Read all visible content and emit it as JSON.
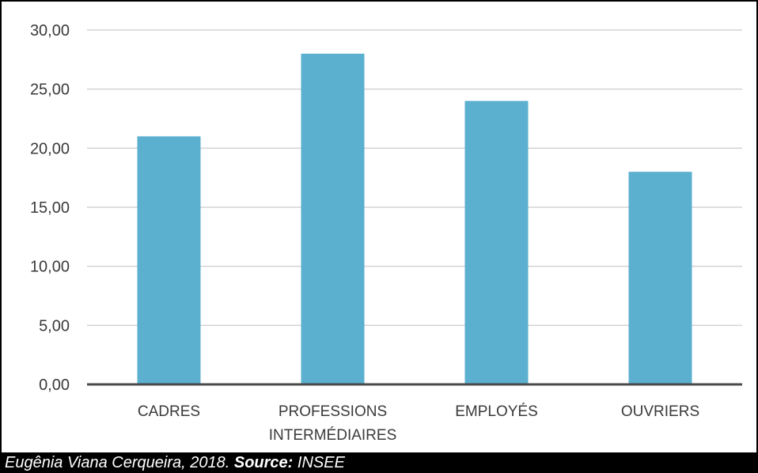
{
  "chart_data": {
    "type": "bar",
    "categories": [
      "CADRES",
      "PROFESSIONS INTERMÉDIAIRES",
      "EMPLOYÉS",
      "OUVRIERS"
    ],
    "category_lines": [
      [
        "CADRES"
      ],
      [
        "PROFESSIONS",
        "INTERMÉDIAIRES"
      ],
      [
        "EMPLOYÉS"
      ],
      [
        "OUVRIERS"
      ]
    ],
    "values": [
      21.0,
      28.0,
      24.0,
      18.0
    ],
    "ylim": [
      0,
      30
    ],
    "yticks": [
      "0,00",
      "5,00",
      "10,00",
      "15,00",
      "20,00",
      "25,00",
      "30,00"
    ],
    "bar_color": "#5BAFCF",
    "grid": true
  },
  "caption": {
    "author": "Eugênia Viana Cerqueira, 2018.",
    "source_label": "Source:",
    "source": "INSEE"
  }
}
